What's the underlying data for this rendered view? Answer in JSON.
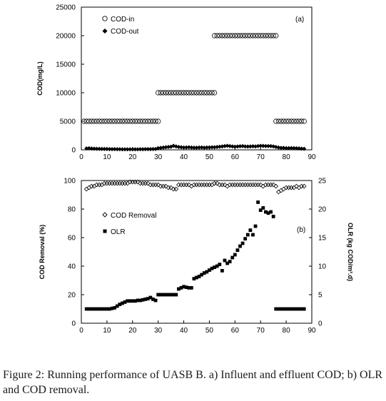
{
  "chart_data": [
    {
      "id": "a",
      "type": "scatter",
      "panel_label": "(a)",
      "ylabel": "COD(mg/L)",
      "xlim": [
        0,
        90
      ],
      "ylim": [
        0,
        25000
      ],
      "x_ticks": [
        "0",
        "10",
        "20",
        "30",
        "40",
        "50",
        "60",
        "70",
        "80",
        "90"
      ],
      "y_ticks": [
        "0",
        "5000",
        "10000",
        "15000",
        "20000",
        "25000"
      ],
      "legend_position": "top-left",
      "series": [
        {
          "name": "COD-in",
          "marker": "open-circle",
          "segments": [
            {
              "x_start": 1,
              "x_end": 30,
              "y": 5000
            },
            {
              "x_start": 30,
              "x_end": 52,
              "y": 10000
            },
            {
              "x_start": 52,
              "x_end": 76,
              "y": 20000
            },
            {
              "x_start": 76,
              "x_end": 87,
              "y": 5000
            }
          ]
        },
        {
          "name": "COD-out",
          "marker": "filled-diamond",
          "points": [
            [
              2,
              250
            ],
            [
              3,
              280
            ],
            [
              4,
              230
            ],
            [
              5,
              200
            ],
            [
              6,
              190
            ],
            [
              7,
              170
            ],
            [
              8,
              160
            ],
            [
              9,
              150
            ],
            [
              10,
              140
            ],
            [
              11,
              130
            ],
            [
              12,
              120
            ],
            [
              13,
              120
            ],
            [
              14,
              110
            ],
            [
              15,
              110
            ],
            [
              16,
              100
            ],
            [
              17,
              100
            ],
            [
              18,
              100
            ],
            [
              19,
              100
            ],
            [
              20,
              100
            ],
            [
              21,
              100
            ],
            [
              22,
              100
            ],
            [
              23,
              110
            ],
            [
              24,
              110
            ],
            [
              25,
              120
            ],
            [
              26,
              120
            ],
            [
              27,
              130
            ],
            [
              28,
              140
            ],
            [
              29,
              150
            ],
            [
              30,
              300
            ],
            [
              31,
              350
            ],
            [
              32,
              400
            ],
            [
              33,
              450
            ],
            [
              34,
              500
            ],
            [
              35,
              550
            ],
            [
              36,
              700
            ],
            [
              37,
              600
            ],
            [
              38,
              500
            ],
            [
              39,
              450
            ],
            [
              40,
              400
            ],
            [
              41,
              420
            ],
            [
              42,
              450
            ],
            [
              43,
              400
            ],
            [
              44,
              380
            ],
            [
              45,
              380
            ],
            [
              46,
              400
            ],
            [
              47,
              420
            ],
            [
              48,
              380
            ],
            [
              49,
              400
            ],
            [
              50,
              420
            ],
            [
              51,
              450
            ],
            [
              52,
              450
            ],
            [
              53,
              500
            ],
            [
              54,
              550
            ],
            [
              55,
              600
            ],
            [
              56,
              650
            ],
            [
              57,
              700
            ],
            [
              58,
              650
            ],
            [
              59,
              600
            ],
            [
              60,
              550
            ],
            [
              61,
              600
            ],
            [
              62,
              620
            ],
            [
              63,
              650
            ],
            [
              64,
              600
            ],
            [
              65,
              580
            ],
            [
              66,
              600
            ],
            [
              67,
              620
            ],
            [
              68,
              600
            ],
            [
              69,
              650
            ],
            [
              70,
              700
            ],
            [
              71,
              680
            ],
            [
              72,
              650
            ],
            [
              73,
              650
            ],
            [
              74,
              650
            ],
            [
              75,
              600
            ],
            [
              76,
              500
            ],
            [
              77,
              400
            ],
            [
              78,
              350
            ],
            [
              79,
              350
            ],
            [
              80,
              300
            ],
            [
              81,
              300
            ],
            [
              82,
              320
            ],
            [
              83,
              300
            ],
            [
              84,
              280
            ],
            [
              85,
              250
            ],
            [
              86,
              200
            ],
            [
              87,
              180
            ]
          ]
        }
      ]
    },
    {
      "id": "b",
      "type": "scatter",
      "panel_label": "(b)",
      "ylabel": "COD Removal (%)",
      "y2label": "OLR (kg COD/m³.d)",
      "xlim": [
        0,
        90
      ],
      "ylim": [
        0,
        100
      ],
      "y2lim": [
        0,
        25
      ],
      "x_ticks": [
        "0",
        "10",
        "20",
        "30",
        "40",
        "50",
        "60",
        "70",
        "80",
        "90"
      ],
      "y_ticks": [
        "0",
        "20",
        "40",
        "60",
        "80",
        "100"
      ],
      "y2_ticks": [
        "0",
        "5",
        "10",
        "15",
        "20",
        "25"
      ],
      "legend_position": "center-left",
      "series": [
        {
          "name": "COD Removal",
          "marker": "open-diamond",
          "axis": "left",
          "points": [
            [
              2,
              94
            ],
            [
              3,
              95
            ],
            [
              4,
              96
            ],
            [
              5,
              96
            ],
            [
              6,
              97
            ],
            [
              7,
              97
            ],
            [
              8,
              97
            ],
            [
              9,
              98
            ],
            [
              10,
              98
            ],
            [
              11,
              98
            ],
            [
              12,
              98
            ],
            [
              13,
              98
            ],
            [
              14,
              98
            ],
            [
              15,
              98
            ],
            [
              16,
              98
            ],
            [
              17,
              98
            ],
            [
              18,
              98
            ],
            [
              19,
              99
            ],
            [
              20,
              99
            ],
            [
              21,
              99
            ],
            [
              22,
              99
            ],
            [
              23,
              98
            ],
            [
              24,
              98
            ],
            [
              25,
              98
            ],
            [
              26,
              98
            ],
            [
              27,
              97
            ],
            [
              28,
              97
            ],
            [
              29,
              97
            ],
            [
              30,
              97
            ],
            [
              31,
              96
            ],
            [
              32,
              96
            ],
            [
              33,
              96
            ],
            [
              34,
              95
            ],
            [
              35,
              95
            ],
            [
              36,
              94
            ],
            [
              37,
              94
            ],
            [
              38,
              97
            ],
            [
              39,
              97
            ],
            [
              40,
              97
            ],
            [
              41,
              97
            ],
            [
              42,
              97
            ],
            [
              43,
              96
            ],
            [
              44,
              97
            ],
            [
              45,
              97
            ],
            [
              46,
              97
            ],
            [
              47,
              97
            ],
            [
              48,
              97
            ],
            [
              49,
              97
            ],
            [
              50,
              97
            ],
            [
              51,
              97
            ],
            [
              52,
              98
            ],
            [
              53,
              98
            ],
            [
              54,
              97
            ],
            [
              55,
              97
            ],
            [
              56,
              97
            ],
            [
              57,
              96
            ],
            [
              58,
              97
            ],
            [
              59,
              97
            ],
            [
              60,
              97
            ],
            [
              61,
              97
            ],
            [
              62,
              97
            ],
            [
              63,
              97
            ],
            [
              64,
              97
            ],
            [
              65,
              97
            ],
            [
              66,
              97
            ],
            [
              67,
              97
            ],
            [
              68,
              97
            ],
            [
              69,
              97
            ],
            [
              70,
              97
            ],
            [
              71,
              96
            ],
            [
              72,
              97
            ],
            [
              73,
              97
            ],
            [
              74,
              97
            ],
            [
              75,
              97
            ],
            [
              76,
              96
            ],
            [
              77,
              92
            ],
            [
              78,
              93
            ],
            [
              79,
              94
            ],
            [
              80,
              95
            ],
            [
              81,
              95
            ],
            [
              82,
              95
            ],
            [
              83,
              95
            ],
            [
              84,
              96
            ],
            [
              85,
              95
            ],
            [
              86,
              96
            ],
            [
              87,
              96
            ]
          ]
        },
        {
          "name": "OLR",
          "marker": "filled-square",
          "axis": "right",
          "points": [
            [
              2,
              2.5
            ],
            [
              3,
              2.5
            ],
            [
              4,
              2.5
            ],
            [
              5,
              2.5
            ],
            [
              6,
              2.5
            ],
            [
              7,
              2.5
            ],
            [
              8,
              2.5
            ],
            [
              9,
              2.5
            ],
            [
              10,
              2.5
            ],
            [
              11,
              2.5
            ],
            [
              12,
              2.6
            ],
            [
              13,
              2.7
            ],
            [
              14,
              3.0
            ],
            [
              15,
              3.3
            ],
            [
              16,
              3.5
            ],
            [
              17,
              3.7
            ],
            [
              18,
              3.9
            ],
            [
              19,
              3.9
            ],
            [
              20,
              3.9
            ],
            [
              21,
              3.9
            ],
            [
              22,
              4.0
            ],
            [
              23,
              4.0
            ],
            [
              24,
              4.1
            ],
            [
              25,
              4.2
            ],
            [
              26,
              4.3
            ],
            [
              27,
              4.5
            ],
            [
              28,
              4.2
            ],
            [
              29,
              4.0
            ],
            [
              30,
              5.0
            ],
            [
              31,
              5.0
            ],
            [
              32,
              5.0
            ],
            [
              33,
              5.0
            ],
            [
              34,
              5.0
            ],
            [
              35,
              5.0
            ],
            [
              36,
              5.0
            ],
            [
              37,
              5.0
            ],
            [
              38,
              6.0
            ],
            [
              39,
              6.2
            ],
            [
              40,
              6.4
            ],
            [
              41,
              6.3
            ],
            [
              42,
              6.2
            ],
            [
              43,
              6.2
            ],
            [
              44,
              7.8
            ],
            [
              45,
              8.0
            ],
            [
              46,
              8.2
            ],
            [
              47,
              8.5
            ],
            [
              48,
              8.8
            ],
            [
              49,
              9.0
            ],
            [
              50,
              9.3
            ],
            [
              51,
              9.6
            ],
            [
              52,
              9.8
            ],
            [
              53,
              10.0
            ],
            [
              54,
              10.3
            ],
            [
              55,
              9.2
            ],
            [
              56,
              11.0
            ],
            [
              57,
              10.5
            ],
            [
              58,
              10.8
            ],
            [
              59,
              11.5
            ],
            [
              60,
              12.0
            ],
            [
              61,
              12.8
            ],
            [
              62,
              13.5
            ],
            [
              63,
              14.0
            ],
            [
              64,
              14.8
            ],
            [
              65,
              15.5
            ],
            [
              66,
              16.3
            ],
            [
              67,
              15.5
            ],
            [
              68,
              17.0
            ],
            [
              69,
              21.2
            ],
            [
              70,
              19.8
            ],
            [
              71,
              20.2
            ],
            [
              72,
              19.5
            ],
            [
              73,
              19.3
            ],
            [
              74,
              19.5
            ],
            [
              75,
              18.7
            ],
            [
              76,
              2.5
            ],
            [
              77,
              2.5
            ],
            [
              78,
              2.5
            ],
            [
              79,
              2.5
            ],
            [
              80,
              2.5
            ],
            [
              81,
              2.5
            ],
            [
              82,
              2.5
            ],
            [
              83,
              2.5
            ],
            [
              84,
              2.5
            ],
            [
              85,
              2.5
            ],
            [
              86,
              2.5
            ],
            [
              87,
              2.5
            ]
          ]
        }
      ]
    }
  ],
  "caption": {
    "label": "Figure 2:",
    "text": "Running performance of UASB B. a) Influent and effluent COD; b) OLR and COD removal."
  }
}
